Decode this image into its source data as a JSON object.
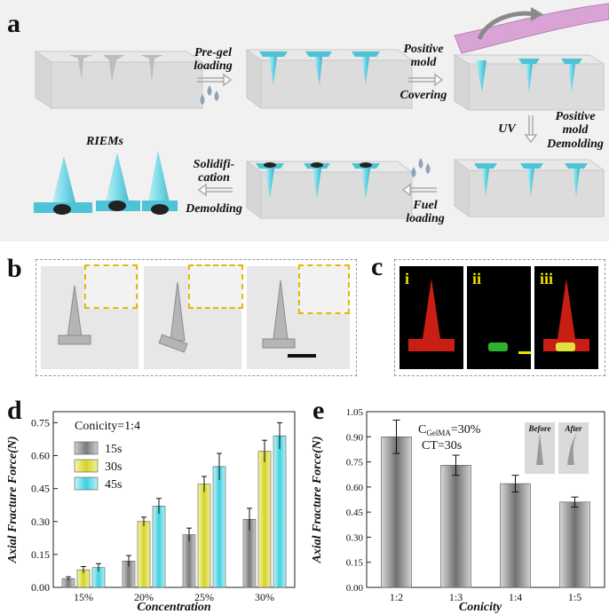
{
  "panel_labels": {
    "a": "a",
    "b": "b",
    "c": "c",
    "d": "d",
    "e": "e"
  },
  "panel_a": {
    "pregel_1": "Pre-gel",
    "pregel_2": "loading",
    "positive_1": "Positive",
    "positive_2": "mold",
    "covering": "Covering",
    "uv": "UV",
    "demold_1": "Positive",
    "demold_2": "mold",
    "demold_3": "Demolding",
    "fuel_1": "Fuel",
    "fuel_2": "loading",
    "solid_1": "Solidifi-",
    "solid_2": "cation",
    "solid_3": "Demolding",
    "riems": "RIEMs"
  },
  "panel_c": {
    "i": "i",
    "ii": "ii",
    "iii": "iii"
  },
  "colors": {
    "cyan": "#5fd7e8",
    "red": "#c81e14",
    "green": "#2fb32f",
    "yellow": "#e2e23c",
    "grey": "#8a8a8a"
  },
  "chart_data": [
    {
      "type": "bar",
      "annotation": "Conicity=1:4",
      "categories": [
        "15%",
        "20%",
        "25%",
        "30%"
      ],
      "series": [
        {
          "name": "15s",
          "values": [
            0.04,
            0.12,
            0.24,
            0.31
          ],
          "errors": [
            0.008,
            0.025,
            0.03,
            0.05
          ]
        },
        {
          "name": "30s",
          "values": [
            0.08,
            0.3,
            0.47,
            0.62
          ],
          "errors": [
            0.015,
            0.02,
            0.035,
            0.05
          ]
        },
        {
          "name": "45s",
          "values": [
            0.09,
            0.37,
            0.55,
            0.69
          ],
          "errors": [
            0.018,
            0.035,
            0.06,
            0.06
          ]
        }
      ],
      "xlabel": "Concentration",
      "ylabel": "Axial Fracture Force(N)",
      "ylim": [
        0,
        0.8
      ],
      "yticks": [
        "0.00",
        "0.15",
        "0.30",
        "0.45",
        "0.60",
        "0.75"
      ]
    },
    {
      "type": "bar",
      "annotation_1": "C",
      "annotation_sub": "GelMA",
      "annotation_1b": "=30%",
      "annotation_2": "CT=30s",
      "inset_before": "Before",
      "inset_after": "After",
      "categories": [
        "1:2",
        "1:3",
        "1:4",
        "1:5"
      ],
      "values": [
        0.9,
        0.73,
        0.62,
        0.51
      ],
      "errors": [
        0.1,
        0.06,
        0.05,
        0.03
      ],
      "xlabel": "Conicity",
      "ylabel": "Axial Fracture Force(N)",
      "ylim": [
        0,
        1.05
      ],
      "yticks": [
        "0.00",
        "0.15",
        "0.30",
        "0.45",
        "0.60",
        "0.75",
        "0.90",
        "1.05"
      ]
    }
  ]
}
